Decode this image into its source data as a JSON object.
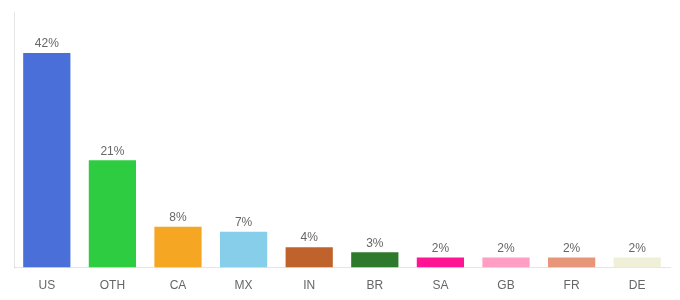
{
  "chart_data": {
    "type": "bar",
    "categories": [
      "US",
      "OTH",
      "CA",
      "MX",
      "IN",
      "BR",
      "SA",
      "GB",
      "FR",
      "DE"
    ],
    "values": [
      42,
      21,
      8,
      7,
      4,
      3,
      2,
      2,
      2,
      2
    ],
    "value_labels": [
      "42%",
      "21%",
      "8%",
      "7%",
      "4%",
      "3%",
      "2%",
      "2%",
      "2%",
      "2%"
    ],
    "colors": [
      "#4a6fd8",
      "#2ecc40",
      "#f5a623",
      "#87ceeb",
      "#c0622b",
      "#2d7a2d",
      "#ff1493",
      "#ff9ec4",
      "#e8967a",
      "#f0f0d8"
    ],
    "ylim": [
      0,
      50
    ],
    "grid": false,
    "data_labels": true,
    "tick_labels": "x"
  }
}
